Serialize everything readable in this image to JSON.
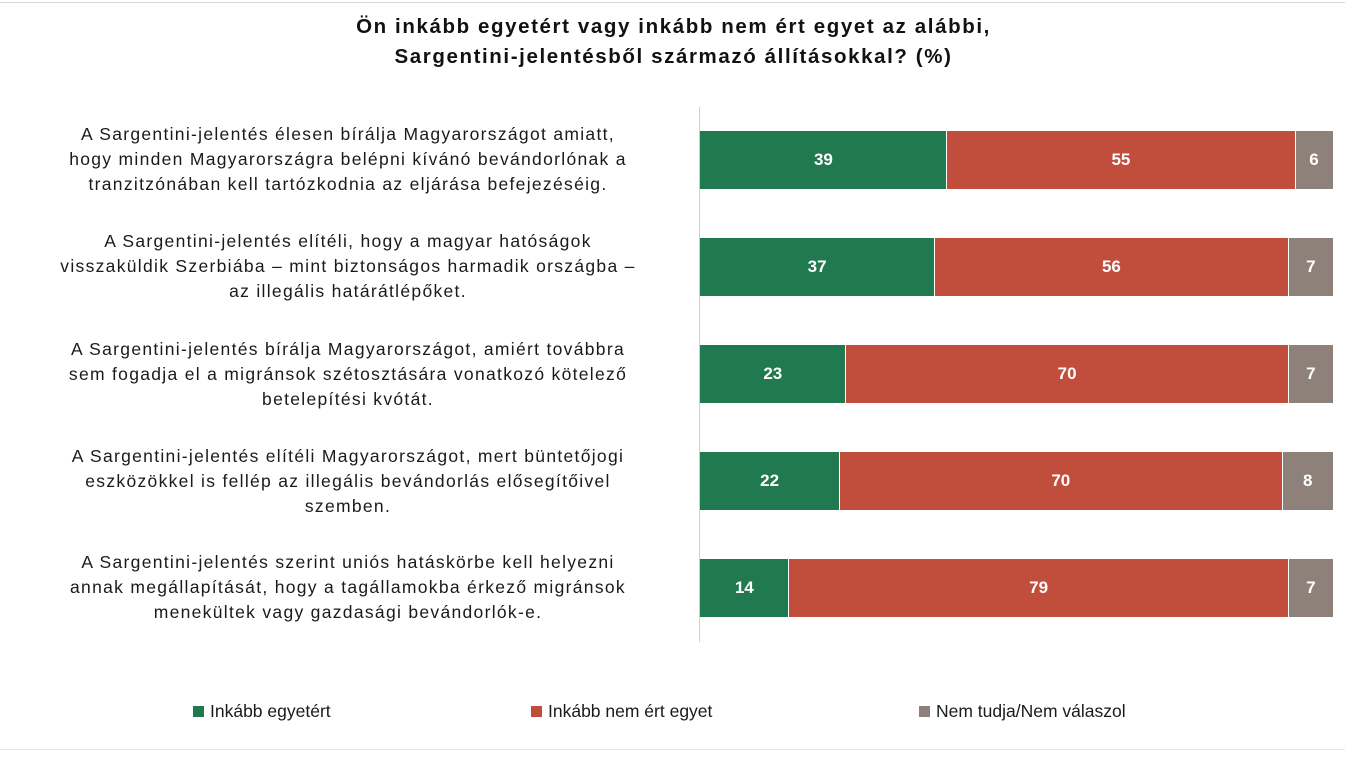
{
  "chart_data": {
    "type": "bar",
    "orientation": "horizontal",
    "stacked": true,
    "title": "Ön inkább egyetért vagy inkább nem ért egyet az alábbi, Sargentini-jelentésből származó állításokkal? (%)",
    "title_lines": [
      "Ön inkább egyetért vagy inkább nem ért egyet az alábbi,",
      "Sargentini-jelentésből származó állításokkal? (%)"
    ],
    "xlim": [
      0,
      100
    ],
    "legend_position": "bottom",
    "categories": [
      {
        "lines": [
          "A Sargentini-jelentés élesen bírálja Magyarországot amiatt,",
          "hogy minden Magyarországra belépni kívánó bevándorlónak a",
          "tranzitzónában kell tartózkodnia az eljárása befejezéséig."
        ]
      },
      {
        "lines": [
          "A Sargentini-jelentés elítéli, hogy a magyar hatóságok",
          "visszaküldik Szerbiába – mint biztonságos harmadik országba –",
          "az illegális határátlépőket."
        ]
      },
      {
        "lines": [
          "A Sargentini-jelentés bírálja Magyarországot, amiért továbbra",
          "sem fogadja el a migránsok szétosztására vonatkozó kötelező",
          "betelepítési kvótát."
        ]
      },
      {
        "lines": [
          "A Sargentini-jelentés elítéli Magyarországot, mert büntetőjogi",
          "eszközökkel is fellép az illegális bevándorlás elősegítőivel",
          "szemben."
        ]
      },
      {
        "lines": [
          "A Sargentini-jelentés szerint uniós hatáskörbe kell helyezni",
          "annak megállapítását, hogy a tagállamokba érkező migránsok",
          "menekültek vagy gazdasági bevándorlók-e."
        ]
      }
    ],
    "series": [
      {
        "name": "Inkább egyetért",
        "color": "#217a4f",
        "values": [
          39,
          37,
          23,
          22,
          14
        ]
      },
      {
        "name": "Inkább nem ért egyet",
        "color": "#c14d3d",
        "values": [
          55,
          56,
          70,
          70,
          79
        ]
      },
      {
        "name": "Nem tudja/Nem válaszol",
        "color": "#8d8179",
        "values": [
          6,
          7,
          7,
          8,
          7
        ]
      }
    ]
  }
}
